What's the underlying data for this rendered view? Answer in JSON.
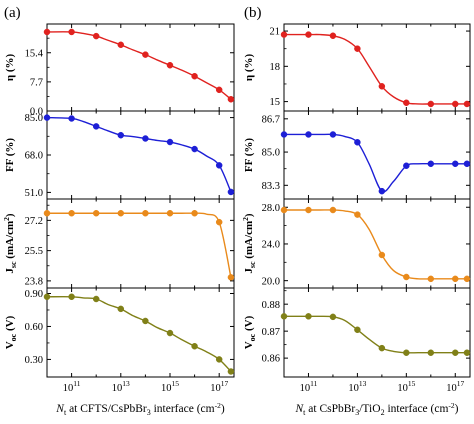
{
  "panel_labels": [
    "(a)",
    "(b)"
  ],
  "chart_data": [
    {
      "panel": "(a)",
      "type": "line",
      "x_scale": "log",
      "xlim": [
        10000000000.0,
        4e+17
      ],
      "x_ticks": [
        {
          "v": 100000000000.0,
          "base": "10",
          "exp": "11"
        },
        {
          "v": 10000000000000.0,
          "base": "10",
          "exp": "13"
        },
        {
          "v": 1000000000000000.0,
          "base": "10",
          "exp": "15"
        },
        {
          "v": 1e+17,
          "base": "10",
          "exp": "17"
        }
      ],
      "xlabel": {
        "pre": "N",
        "sub": "t",
        "post": " at CFTS/CsPbBr",
        "sub2": "3",
        "post2": " interface (cm",
        "sup": "-2",
        "end": ")"
      },
      "x": [
        10000000000.0,
        100000000000.0,
        300000000000.0,
        1000000000000.0,
        3000000000000.0,
        10000000000000.0,
        30000000000000.0,
        100000000000000.0,
        300000000000000.0,
        1000000000000000.0,
        3000000000000000.0,
        1e+16,
        3e+16,
        1e+17,
        3e+17
      ],
      "subplots": [
        {
          "ylabel": {
            "main": "η (%)",
            "sub": ""
          },
          "ylim": [
            0,
            23
          ],
          "yticks": [
            "0.0",
            "7.7",
            "15.4"
          ],
          "ytick_vals": [
            0,
            7.7,
            15.4
          ],
          "color": "#e0221f",
          "markers": [
            10000000000.0,
            100000000000.0,
            1000000000000.0,
            10000000000000.0,
            100000000000000.0,
            1000000000000000.0,
            1e+16,
            1e+17,
            3e+17
          ],
          "values": [
            20.9,
            20.9,
            20.5,
            19.8,
            18.7,
            17.5,
            16.2,
            14.9,
            13.5,
            12.1,
            10.8,
            9.2,
            7.5,
            5.6,
            3.1
          ]
        },
        {
          "ylabel": {
            "main": "FF (%)",
            "sub": ""
          },
          "ylim": [
            48.0,
            88.0
          ],
          "yticks": [
            "51.0",
            "68.0",
            "85.0"
          ],
          "ytick_vals": [
            51.0,
            68.0,
            85.0
          ],
          "color": "#1d1fd6",
          "markers": [
            10000000000.0,
            100000000000.0,
            1000000000000.0,
            10000000000000.0,
            100000000000000.0,
            1000000000000000.0,
            1e+16,
            1e+17,
            3e+17
          ],
          "values": [
            85.0,
            84.6,
            83.2,
            81.0,
            79.0,
            77.0,
            76.4,
            75.5,
            74.6,
            73.9,
            72.6,
            70.7,
            67.6,
            63.3,
            51.2
          ]
        },
        {
          "ylabel": {
            "main": "J",
            "sub": "sc",
            "post": " (mA/cm",
            "sup": "2",
            "end": ")"
          },
          "ylim": [
            23.4,
            28.4
          ],
          "yticks": [
            "23.8",
            "25.5",
            "27.2"
          ],
          "ytick_vals": [
            23.8,
            25.5,
            27.2
          ],
          "color": "#e98a1b",
          "markers": [
            10000000000.0,
            100000000000.0,
            1000000000000.0,
            10000000000000.0,
            100000000000000.0,
            1000000000000000.0,
            1e+16,
            1e+17,
            3e+17
          ],
          "values": [
            27.6,
            27.6,
            27.6,
            27.6,
            27.6,
            27.6,
            27.6,
            27.6,
            27.6,
            27.6,
            27.6,
            27.6,
            27.55,
            27.1,
            24.0
          ]
        },
        {
          "ylabel": {
            "main": "V",
            "sub": "oc",
            "post": " (V)",
            "sup": "",
            "end": ""
          },
          "ylim": [
            0.14,
            0.95
          ],
          "yticks": [
            "0.30",
            "0.60",
            "0.90"
          ],
          "ytick_vals": [
            0.3,
            0.6,
            0.9
          ],
          "color": "#808018",
          "markers": [
            10000000000.0,
            100000000000.0,
            1000000000000.0,
            10000000000000.0,
            100000000000000.0,
            1000000000000000.0,
            1e+16,
            1e+17,
            3e+17
          ],
          "values": [
            0.87,
            0.87,
            0.86,
            0.85,
            0.8,
            0.76,
            0.7,
            0.65,
            0.59,
            0.54,
            0.48,
            0.42,
            0.37,
            0.3,
            0.19
          ]
        }
      ]
    },
    {
      "panel": "(b)",
      "type": "line",
      "x_scale": "log",
      "xlim": [
        10000000000.0,
        4e+17
      ],
      "x_ticks": [
        {
          "v": 100000000000.0,
          "base": "10",
          "exp": "11"
        },
        {
          "v": 10000000000000.0,
          "base": "10",
          "exp": "13"
        },
        {
          "v": 1000000000000000.0,
          "base": "10",
          "exp": "15"
        },
        {
          "v": 1e+17,
          "base": "10",
          "exp": "17"
        }
      ],
      "xlabel": {
        "pre": "N",
        "sub": "t",
        "post": " at CsPbBr",
        "sub2": "3",
        "post2": "/TiO",
        "sub3": "2",
        "post3": " interface (cm",
        "sup": "-2",
        "end": ")"
      },
      "x": [
        10000000000.0,
        100000000000.0,
        300000000000.0,
        1000000000000.0,
        3000000000000.0,
        10000000000000.0,
        30000000000000.0,
        100000000000000.0,
        300000000000000.0,
        1000000000000000.0,
        3000000000000000.0,
        1e+16,
        3e+16,
        1e+17,
        3e+17
      ],
      "subplots": [
        {
          "ylabel": {
            "main": "η (%)",
            "sub": ""
          },
          "ylim": [
            14.2,
            21.6
          ],
          "yticks": [
            "15",
            "18",
            "21"
          ],
          "ytick_vals": [
            15,
            18,
            21
          ],
          "color": "#e0221f",
          "markers": [
            10000000000.0,
            100000000000.0,
            1000000000000.0,
            10000000000000.0,
            100000000000000.0,
            1000000000000000.0,
            1e+16,
            1e+17,
            3e+17
          ],
          "values": [
            20.7,
            20.7,
            20.7,
            20.6,
            20.3,
            19.5,
            18.0,
            16.3,
            15.4,
            14.9,
            14.8,
            14.8,
            14.8,
            14.8,
            14.8
          ]
        },
        {
          "ylabel": {
            "main": "FF (%)",
            "sub": ""
          },
          "ylim": [
            82.6,
            87.1
          ],
          "yticks": [
            "83.3",
            "85.0",
            "86.7"
          ],
          "ytick_vals": [
            83.3,
            85.0,
            86.7
          ],
          "color": "#1d1fd6",
          "markers": [
            10000000000.0,
            100000000000.0,
            1000000000000.0,
            10000000000000.0,
            100000000000000.0,
            1000000000000000.0,
            1e+16,
            1e+17,
            3e+17
          ],
          "values": [
            85.9,
            85.9,
            85.9,
            85.9,
            85.8,
            85.5,
            84.4,
            83.0,
            83.5,
            84.3,
            84.4,
            84.4,
            84.4,
            84.4,
            84.4
          ]
        },
        {
          "ylabel": {
            "main": "J",
            "sub": "sc",
            "post": " (mA/cm",
            "sup": "2",
            "end": ")"
          },
          "ylim": [
            19.2,
            28.9
          ],
          "yticks": [
            "20.0",
            "24.0",
            "28.0"
          ],
          "ytick_vals": [
            20.0,
            24.0,
            28.0
          ],
          "color": "#e98a1b",
          "markers": [
            10000000000.0,
            100000000000.0,
            1000000000000.0,
            10000000000000.0,
            100000000000000.0,
            1000000000000000.0,
            1e+16,
            1e+17,
            3e+17
          ],
          "values": [
            27.7,
            27.7,
            27.7,
            27.7,
            27.6,
            27.2,
            25.6,
            22.8,
            21.1,
            20.4,
            20.2,
            20.2,
            20.2,
            20.2,
            20.2
          ]
        },
        {
          "ylabel": {
            "main": "V",
            "sub": "oc",
            "post": " (V)",
            "sup": "",
            "end": ""
          },
          "ylim": [
            0.853,
            0.886
          ],
          "yticks": [
            "0.86",
            "0.87",
            "0.88"
          ],
          "ytick_vals": [
            0.86,
            0.87,
            0.88
          ],
          "color": "#808018",
          "markers": [
            10000000000.0,
            100000000000.0,
            1000000000000.0,
            10000000000000.0,
            100000000000000.0,
            1000000000000000.0,
            1e+16,
            1e+17,
            3e+17
          ],
          "values": [
            0.8755,
            0.8755,
            0.8755,
            0.8753,
            0.874,
            0.8705,
            0.867,
            0.8637,
            0.8625,
            0.862,
            0.862,
            0.862,
            0.862,
            0.862,
            0.862
          ]
        }
      ]
    }
  ]
}
